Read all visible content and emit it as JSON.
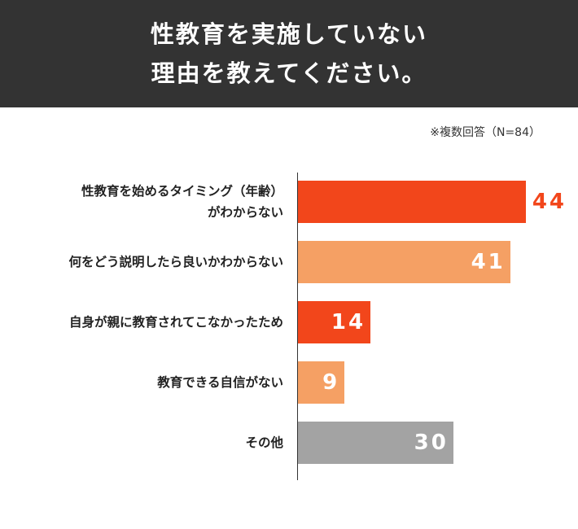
{
  "chart_data": {
    "type": "bar",
    "orientation": "horizontal",
    "title": "性教育を実施していない\n理由を教えてください。",
    "note": "※複数回答（N=84）",
    "categories": [
      "性教育を始めるタイミング（年齢）\nがわからない",
      "何をどう説明したら良いかわからない",
      "自身が親に教育されてこなかったため",
      "教育できる自信がない",
      "その他"
    ],
    "values": [
      44,
      41,
      14,
      9,
      30
    ],
    "colors": [
      "#f2461b",
      "#f5a064",
      "#f2461b",
      "#f5a064",
      "#a3a3a3"
    ],
    "label_outside": [
      true,
      false,
      false,
      false,
      false
    ]
  }
}
